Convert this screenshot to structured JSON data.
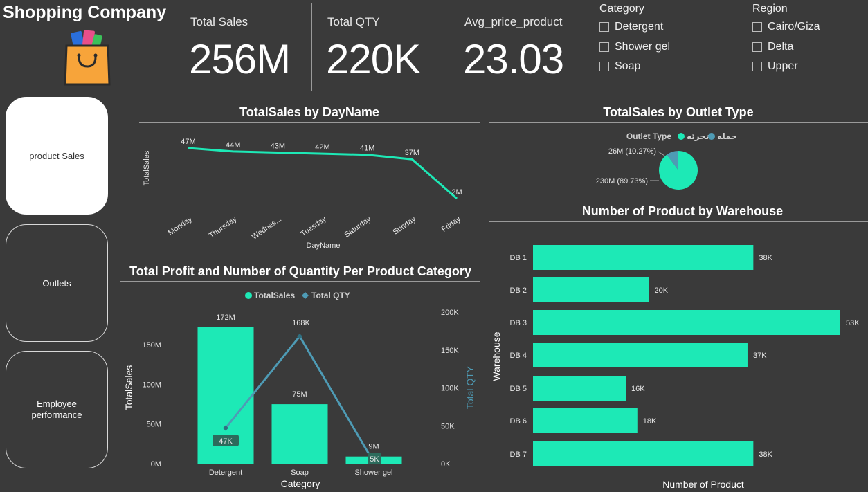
{
  "app": {
    "title": "Shopping Company"
  },
  "nav": [
    {
      "label": "product Sales",
      "active": true
    },
    {
      "label": "Outlets",
      "active": false
    },
    {
      "label": "Employee performance",
      "active": false
    }
  ],
  "kpis": [
    {
      "label": "Total Sales",
      "value": "256M"
    },
    {
      "label": "Total QTY",
      "value": "220K"
    },
    {
      "label": "Avg_price_product",
      "value": "23.03"
    }
  ],
  "slicers": {
    "category": {
      "title": "Category",
      "items": [
        "Detergent",
        "Shower gel",
        "Soap"
      ]
    },
    "region": {
      "title": "Region",
      "items": [
        "Cairo/Giza",
        "Delta",
        "Upper"
      ]
    }
  },
  "colors": {
    "accent": "#1de9b6",
    "secondary": "#4e9bb5",
    "background": "#3a3a3a"
  },
  "chart_data": [
    {
      "id": "day",
      "type": "line",
      "title": "TotalSales by DayName",
      "xlabel": "DayName",
      "ylabel": "TotalSales",
      "categories": [
        "Monday",
        "Thursday",
        "Wednes...",
        "Tuesday",
        "Saturday",
        "Sunday",
        "Friday"
      ],
      "values": [
        47,
        44,
        43,
        42,
        41,
        37,
        2
      ],
      "data_labels": [
        "47M",
        "44M",
        "43M",
        "42M",
        "41M",
        "37M",
        "2M"
      ],
      "grid": false
    },
    {
      "id": "outlet",
      "type": "pie",
      "title": "TotalSales by Outlet Type",
      "legend_title": "Outlet Type",
      "legend_position": "top",
      "slices": [
        {
          "name": "تجزئه",
          "value": 230,
          "label": "230M (89.73%)",
          "color": "#1de9b6"
        },
        {
          "name": "جمله",
          "value": 26,
          "label": "26M (10.27%)",
          "color": "#4e9bb5"
        }
      ]
    },
    {
      "id": "category",
      "type": "bar",
      "title": "Total Profit and Number of Quantity Per Product Category",
      "xlabel": "Category",
      "ylabel": "TotalSales",
      "y2label": "Total QTY",
      "legend_position": "top",
      "categories": [
        "Detergent",
        "Soap",
        "Shower gel"
      ],
      "series": [
        {
          "name": "TotalSales",
          "type": "bar",
          "values": [
            172,
            75,
            9
          ],
          "data_labels": [
            "172M",
            "75M",
            "9M"
          ],
          "color": "#1de9b6"
        },
        {
          "name": "Total QTY",
          "type": "line",
          "axis": "right",
          "values": [
            47,
            168,
            5
          ],
          "data_labels": [
            "47K",
            "168K",
            "5K"
          ],
          "color": "#4e9bb5"
        }
      ],
      "ylim": [
        0,
        172
      ],
      "yticks": [
        {
          "value": 0,
          "label": "0M"
        },
        {
          "value": 50,
          "label": "50M"
        },
        {
          "value": 100,
          "label": "100M"
        },
        {
          "value": 150,
          "label": "150M"
        }
      ],
      "y2lim": [
        0,
        200
      ],
      "y2ticks": [
        {
          "value": 0,
          "label": "0K"
        },
        {
          "value": 50,
          "label": "50K"
        },
        {
          "value": 100,
          "label": "100K"
        },
        {
          "value": 150,
          "label": "150K"
        },
        {
          "value": 200,
          "label": "200K"
        }
      ]
    },
    {
      "id": "warehouse",
      "type": "bar",
      "orientation": "horizontal",
      "title": "Number of Product by Warehouse",
      "xlabel": "Number of Product",
      "ylabel": "Warehouse",
      "categories": [
        "DB 1",
        "DB 2",
        "DB 3",
        "DB 4",
        "DB 5",
        "DB 6",
        "DB 7"
      ],
      "values": [
        38,
        20,
        53,
        37,
        16,
        18,
        38
      ],
      "data_labels": [
        "38K",
        "20K",
        "53K",
        "37K",
        "16K",
        "18K",
        "38K"
      ],
      "xlim": [
        0,
        53
      ]
    }
  ]
}
